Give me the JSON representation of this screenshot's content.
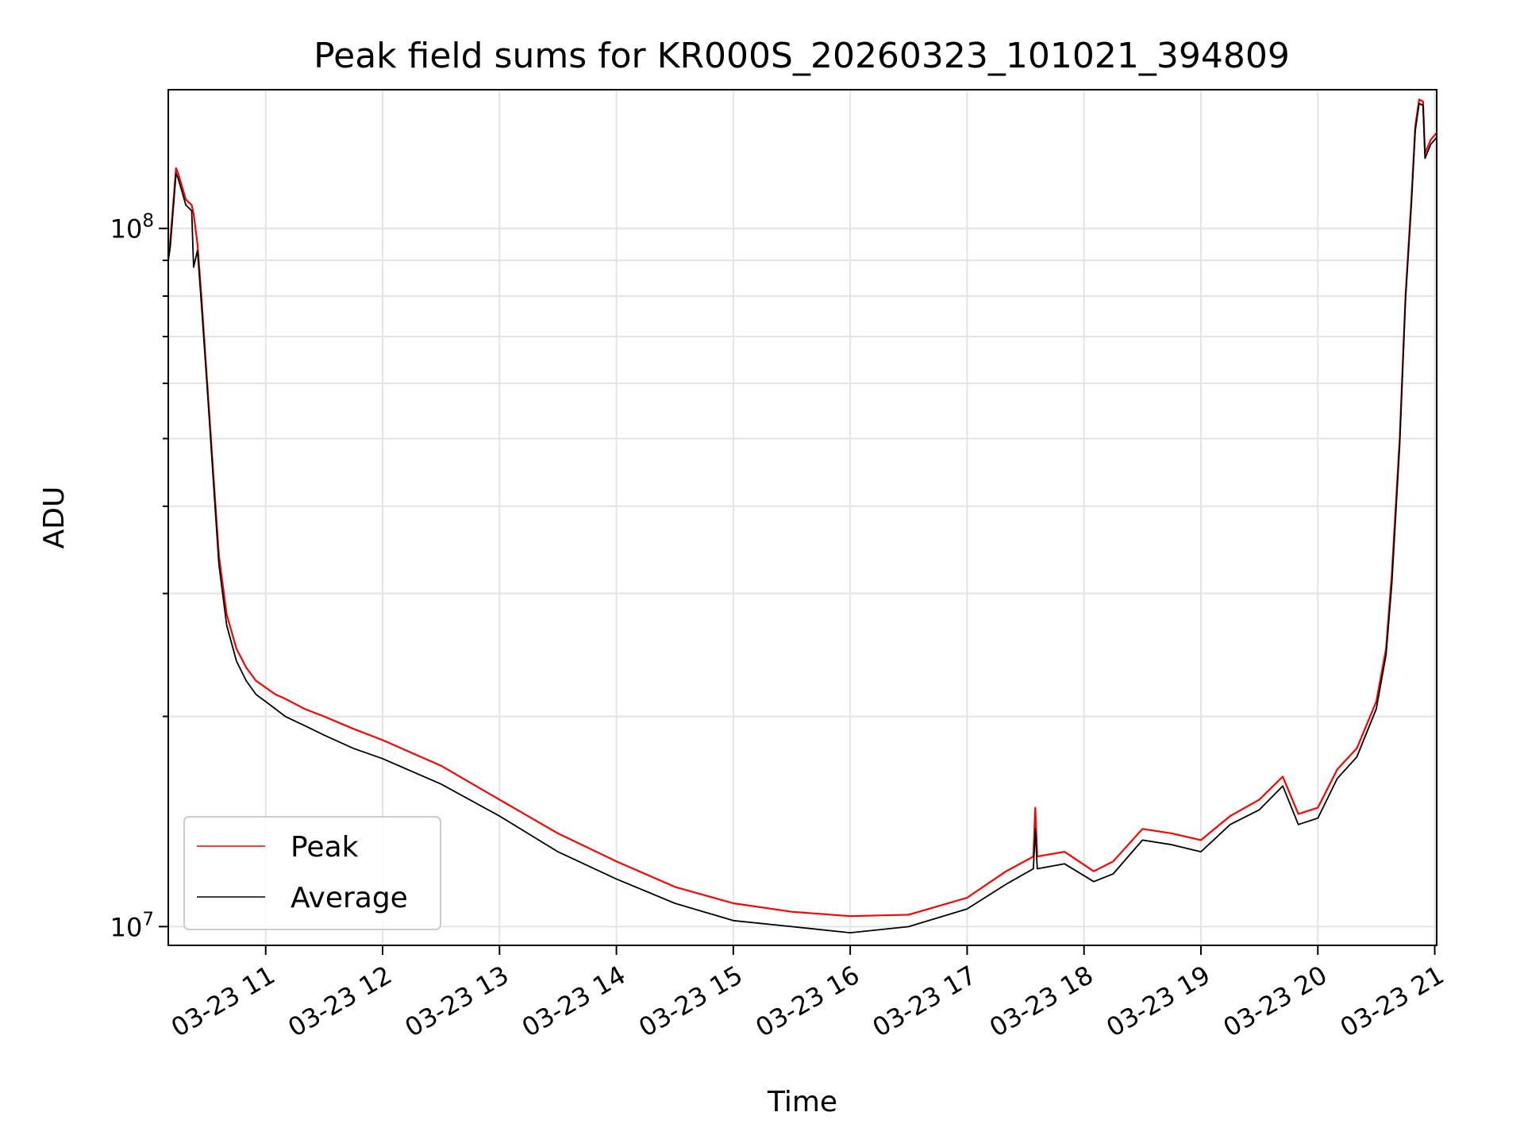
{
  "chart_data": {
    "type": "line",
    "title": "Peak field sums for KR000S_20260323_101021_394809",
    "xlabel": "Time",
    "ylabel": "ADU",
    "yscale": "log",
    "ylim": [
      9400000,
      158000000
    ],
    "xlim": [
      "2026-03-23 10:10",
      "2026-03-23 21:01"
    ],
    "grid": true,
    "legend": {
      "placement": "lower-left",
      "entries": [
        "Peak",
        "Average"
      ]
    },
    "x_ticks": [
      "03-23 11",
      "03-23 12",
      "03-23 13",
      "03-23 14",
      "03-23 15",
      "03-23 16",
      "03-23 17",
      "03-23 18",
      "03-23 19",
      "03-23 20",
      "03-23 21"
    ],
    "x_tick_times": [
      "2026-03-23 11:00",
      "2026-03-23 12:00",
      "2026-03-23 13:00",
      "2026-03-23 14:00",
      "2026-03-23 15:00",
      "2026-03-23 16:00",
      "2026-03-23 17:00",
      "2026-03-23 18:00",
      "2026-03-23 19:00",
      "2026-03-23 20:00",
      "2026-03-23 21:00"
    ],
    "y_ticks": [
      {
        "value": 10000000,
        "base": "10",
        "exp": "7"
      },
      {
        "value": 100000000,
        "base": "10",
        "exp": "8"
      }
    ],
    "y_minor_ticks": [
      20000000,
      30000000,
      40000000,
      50000000,
      60000000,
      70000000,
      80000000,
      90000000
    ],
    "series": [
      {
        "name": "Peak",
        "color": "#ff0000",
        "x": [
          "2026-03-23 10:10",
          "2026-03-23 10:11",
          "2026-03-23 10:14",
          "2026-03-23 10:15",
          "2026-03-23 10:17",
          "2026-03-23 10:19",
          "2026-03-23 10:22",
          "2026-03-23 10:23",
          "2026-03-23 10:25",
          "2026-03-23 10:27",
          "2026-03-23 10:30",
          "2026-03-23 10:33",
          "2026-03-23 10:36",
          "2026-03-23 10:40",
          "2026-03-23 10:45",
          "2026-03-23 10:50",
          "2026-03-23 10:55",
          "2026-03-23 11:00",
          "2026-03-23 11:05",
          "2026-03-23 11:10",
          "2026-03-23 11:20",
          "2026-03-23 11:30",
          "2026-03-23 11:45",
          "2026-03-23 12:00",
          "2026-03-23 12:30",
          "2026-03-23 13:00",
          "2026-03-23 13:30",
          "2026-03-23 14:00",
          "2026-03-23 14:30",
          "2026-03-23 15:00",
          "2026-03-23 15:30",
          "2026-03-23 16:00",
          "2026-03-23 16:30",
          "2026-03-23 17:00",
          "2026-03-23 17:20",
          "2026-03-23 17:34",
          "2026-03-23 17:35",
          "2026-03-23 17:36",
          "2026-03-23 17:50",
          "2026-03-23 18:05",
          "2026-03-23 18:15",
          "2026-03-23 18:30",
          "2026-03-23 18:45",
          "2026-03-23 19:00",
          "2026-03-23 19:15",
          "2026-03-23 19:30",
          "2026-03-23 19:42",
          "2026-03-23 19:50",
          "2026-03-23 20:00",
          "2026-03-23 20:10",
          "2026-03-23 20:20",
          "2026-03-23 20:30",
          "2026-03-23 20:35",
          "2026-03-23 20:38",
          "2026-03-23 20:42",
          "2026-03-23 20:45",
          "2026-03-23 20:48",
          "2026-03-23 20:50",
          "2026-03-23 20:52",
          "2026-03-23 20:54",
          "2026-03-23 20:55",
          "2026-03-23 20:58",
          "2026-03-23 21:01"
        ],
        "y": [
          92000000,
          96000000,
          122000000,
          120000000,
          115000000,
          110000000,
          108000000,
          105000000,
          95000000,
          80000000,
          60000000,
          45000000,
          34000000,
          28000000,
          25000000,
          23500000,
          22500000,
          22000000,
          21500000,
          21200000,
          20500000,
          20000000,
          19200000,
          18500000,
          17000000,
          15200000,
          13600000,
          12400000,
          11400000,
          10800000,
          10500000,
          10350000,
          10400000,
          11000000,
          12000000,
          12600000,
          14800000,
          12600000,
          12800000,
          12000000,
          12400000,
          13800000,
          13600000,
          13300000,
          14400000,
          15200000,
          16400000,
          14500000,
          14800000,
          16800000,
          18000000,
          21000000,
          25000000,
          32000000,
          50000000,
          80000000,
          110000000,
          140000000,
          153000000,
          152000000,
          128000000,
          134000000,
          137000000
        ]
      },
      {
        "name": "Average",
        "color": "#000000",
        "x": [
          "2026-03-23 10:10",
          "2026-03-23 10:11",
          "2026-03-23 10:14",
          "2026-03-23 10:15",
          "2026-03-23 10:17",
          "2026-03-23 10:19",
          "2026-03-23 10:22",
          "2026-03-23 10:23",
          "2026-03-23 10:25",
          "2026-03-23 10:27",
          "2026-03-23 10:30",
          "2026-03-23 10:33",
          "2026-03-23 10:36",
          "2026-03-23 10:40",
          "2026-03-23 10:45",
          "2026-03-23 10:50",
          "2026-03-23 10:55",
          "2026-03-23 11:00",
          "2026-03-23 11:05",
          "2026-03-23 11:10",
          "2026-03-23 11:20",
          "2026-03-23 11:30",
          "2026-03-23 11:45",
          "2026-03-23 12:00",
          "2026-03-23 12:30",
          "2026-03-23 13:00",
          "2026-03-23 13:30",
          "2026-03-23 14:00",
          "2026-03-23 14:30",
          "2026-03-23 15:00",
          "2026-03-23 15:30",
          "2026-03-23 16:00",
          "2026-03-23 16:30",
          "2026-03-23 17:00",
          "2026-03-23 17:20",
          "2026-03-23 17:34",
          "2026-03-23 17:35",
          "2026-03-23 17:36",
          "2026-03-23 17:50",
          "2026-03-23 18:05",
          "2026-03-23 18:15",
          "2026-03-23 18:30",
          "2026-03-23 18:45",
          "2026-03-23 19:00",
          "2026-03-23 19:15",
          "2026-03-23 19:30",
          "2026-03-23 19:42",
          "2026-03-23 19:50",
          "2026-03-23 20:00",
          "2026-03-23 20:10",
          "2026-03-23 20:20",
          "2026-03-23 20:30",
          "2026-03-23 20:35",
          "2026-03-23 20:38",
          "2026-03-23 20:42",
          "2026-03-23 20:45",
          "2026-03-23 20:48",
          "2026-03-23 20:50",
          "2026-03-23 20:52",
          "2026-03-23 20:54",
          "2026-03-23 20:55",
          "2026-03-23 20:58",
          "2026-03-23 21:01"
        ],
        "y": [
          90000000,
          94000000,
          120000000,
          118000000,
          113000000,
          108000000,
          106000000,
          88000000,
          93000000,
          78000000,
          59000000,
          44000000,
          33000000,
          27000000,
          24000000,
          22500000,
          21500000,
          21000000,
          20500000,
          20000000,
          19400000,
          18800000,
          18000000,
          17400000,
          16000000,
          14400000,
          12800000,
          11700000,
          10800000,
          10200000,
          10000000,
          9800000,
          10000000,
          10600000,
          11500000,
          12100000,
          13800000,
          12100000,
          12300000,
          11600000,
          11900000,
          13300000,
          13100000,
          12800000,
          14000000,
          14700000,
          15900000,
          14000000,
          14300000,
          16300000,
          17500000,
          20500000,
          24500000,
          31000000,
          49000000,
          79000000,
          108000000,
          138000000,
          151000000,
          150000000,
          126000000,
          132000000,
          135000000
        ]
      }
    ]
  }
}
